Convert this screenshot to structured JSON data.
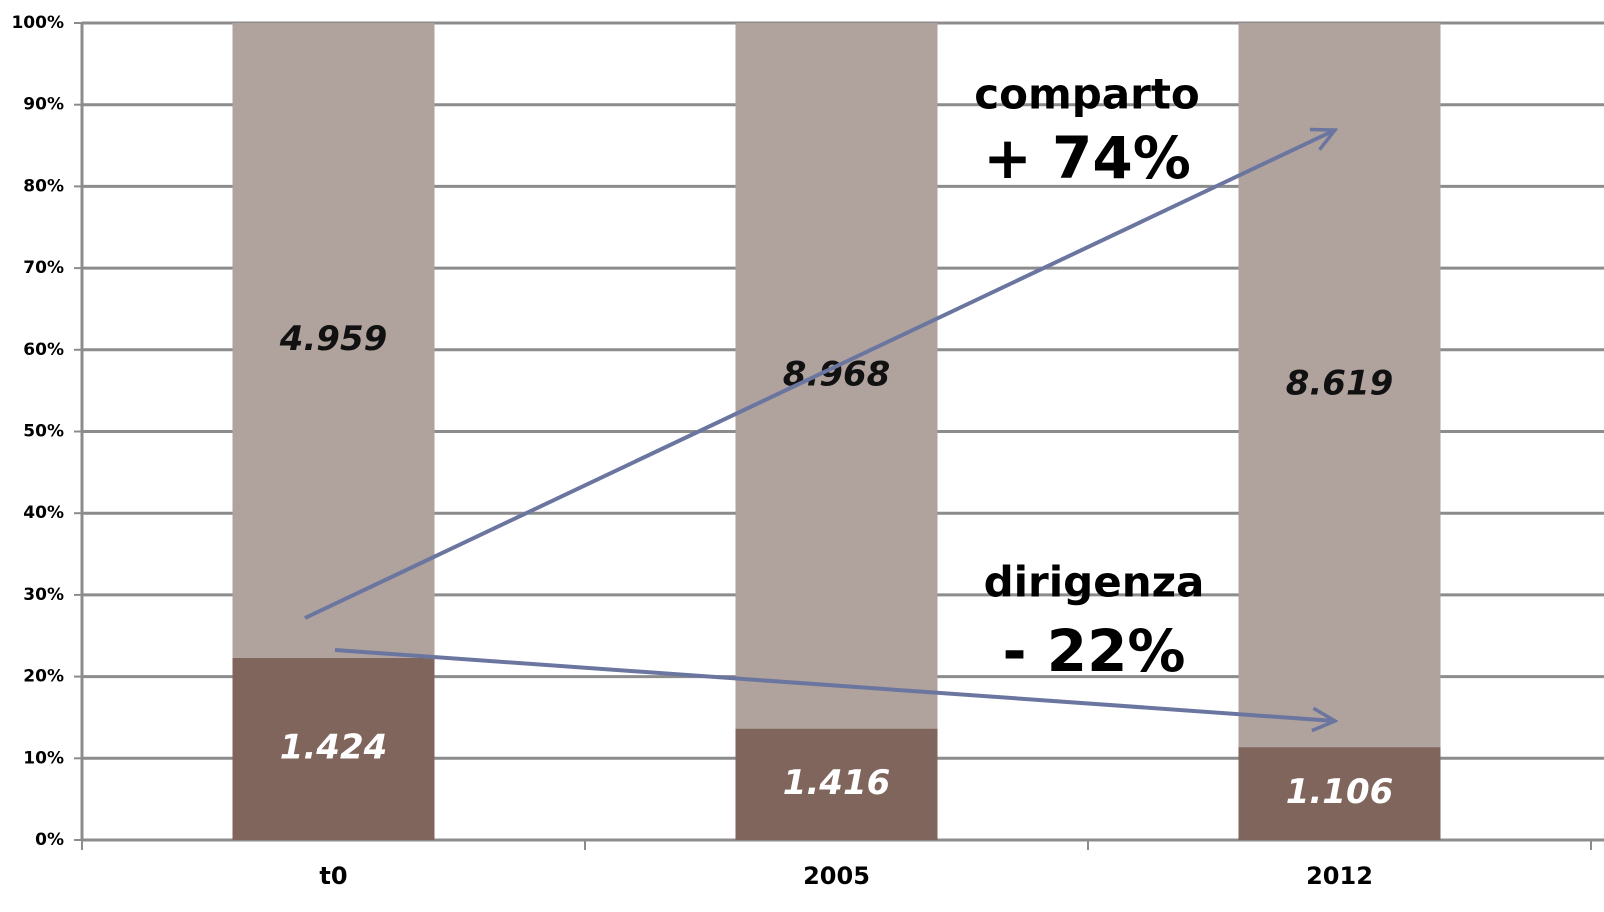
{
  "chart_data": {
    "type": "stacked_percent_bar",
    "categories": [
      "t0",
      "2005",
      "2012"
    ],
    "series": [
      {
        "name": "dirigenza",
        "color": "#7f655c",
        "label_color": "#ffffff",
        "values": [
          1424,
          1416,
          1106
        ],
        "value_labels": [
          "1.424",
          "1.416",
          "1.106"
        ],
        "change": "- 22%"
      },
      {
        "name": "comparto",
        "color": "#b0a29c",
        "label_color": "#111111",
        "values": [
          4959,
          8968,
          8619
        ],
        "value_labels": [
          "4.959",
          "8.968",
          "8.619"
        ],
        "change": "+ 74%"
      }
    ],
    "ylim": [
      0,
      100
    ],
    "yticks": [
      {
        "value": 0,
        "label": "0%"
      },
      {
        "value": 10,
        "label": "10%"
      },
      {
        "value": 20,
        "label": "20%"
      },
      {
        "value": 30,
        "label": "30%"
      },
      {
        "value": 40,
        "label": "40%"
      },
      {
        "value": 50,
        "label": "50%"
      },
      {
        "value": 60,
        "label": "60%"
      },
      {
        "value": 70,
        "label": "70%"
      },
      {
        "value": 80,
        "label": "80%"
      },
      {
        "value": 90,
        "label": "90%"
      },
      {
        "value": 100,
        "label": "100%"
      }
    ],
    "grid": true
  }
}
